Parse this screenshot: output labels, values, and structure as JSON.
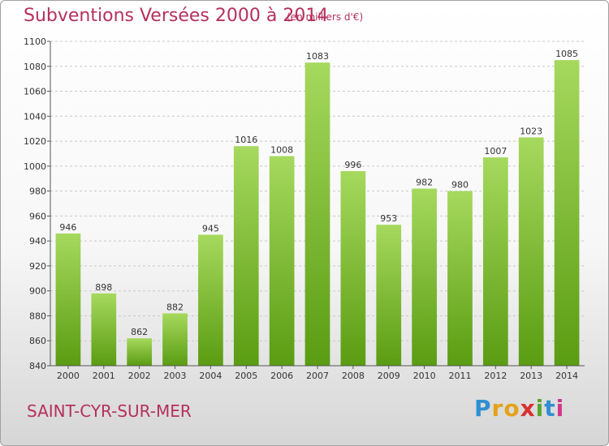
{
  "header": {
    "title": "Subventions Versées 2000 à 2014",
    "subtitle": "(en milliers d'€)"
  },
  "footer": {
    "commune": "SAINT-CYR-SUR-MER",
    "brand_letters": [
      "P",
      "r",
      "o",
      "x",
      "i",
      "t",
      "i"
    ],
    "brand_colors": [
      "#2f8fd1",
      "#e3a21a",
      "#e3a21a",
      "#d93030",
      "#55a82b",
      "#2f8fd1",
      "#d0368a"
    ]
  },
  "colors": {
    "bar_light": "#a6d95e",
    "bar_dark": "#5a9c12",
    "title": "#b5315c"
  },
  "chart_data": {
    "type": "bar",
    "categories": [
      "2000",
      "2001",
      "2002",
      "2003",
      "2004",
      "2005",
      "2006",
      "2007",
      "2008",
      "2009",
      "2010",
      "2011",
      "2012",
      "2013",
      "2014"
    ],
    "values": [
      946,
      898,
      862,
      882,
      945,
      1016,
      1008,
      1083,
      996,
      953,
      982,
      980,
      1007,
      1023,
      1085
    ],
    "title": "Subventions Versées 2000 à 2014",
    "xlabel": "",
    "ylabel": "",
    "ylim": [
      840,
      1100
    ],
    "yticks": [
      840,
      860,
      880,
      900,
      920,
      940,
      960,
      980,
      1000,
      1020,
      1040,
      1060,
      1080,
      1100
    ],
    "grid": true,
    "data_labels": true
  }
}
